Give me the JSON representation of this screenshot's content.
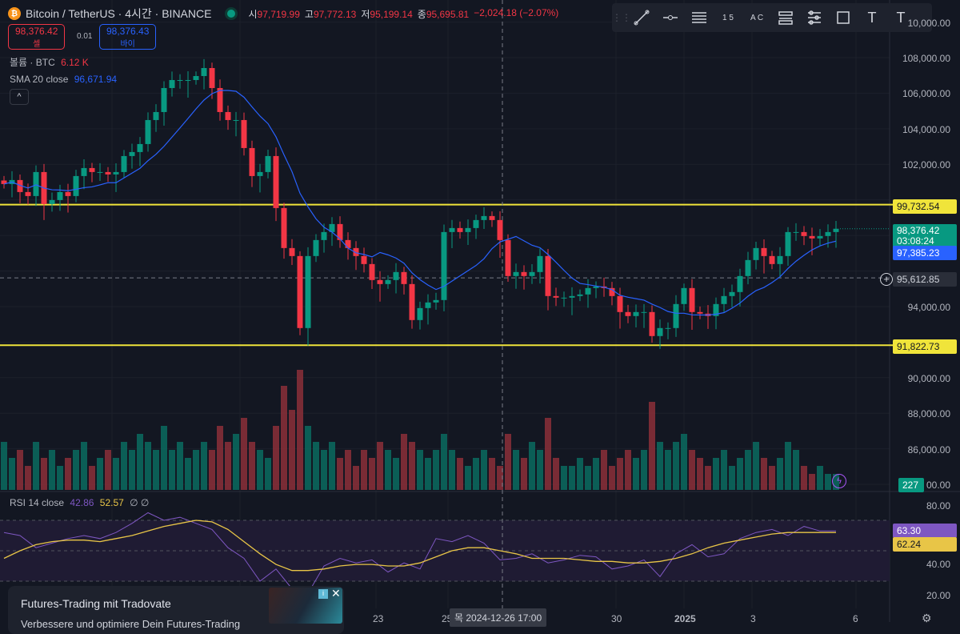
{
  "header": {
    "symbol": "Bitcoin / TetherUS · 4시간 · BINANCE",
    "open_label": "시",
    "open": "97,719.99",
    "high_label": "고",
    "high": "97,772.13",
    "low_label": "저",
    "low": "95,199.14",
    "close_label": "종",
    "close": "95,695.81",
    "change": "−2,024.18 (−2.07%)"
  },
  "trade": {
    "sell_price": "98,376.42",
    "sell_label": "셀",
    "spread": "0.01",
    "buy_price": "98,376.43",
    "buy_label": "바이"
  },
  "legend": {
    "volume_label": "볼륨 · BTC",
    "volume_value": "6.12 K",
    "sma_label": "SMA 20 close",
    "sma_value": "96,671.94",
    "collapse": "^"
  },
  "toolbar": {
    "icons": [
      "grip",
      "trend-line",
      "horizontal-ray",
      "parallel-lines",
      "fib-pattern",
      "abc-pattern",
      "lines",
      "multi-lines",
      "rectangle",
      "text",
      "text-note"
    ],
    "fib_glyph": "1 5",
    "abc_glyph": "A C",
    "text_glyph": "T",
    "note_glyph": "T"
  },
  "price_axis": [
    "10,000.00",
    "108,000.00",
    "106,000.00",
    "104,000.00",
    "102,000.00",
    "94,000.00",
    "90,000.00",
    "88,000.00",
    "86,000.00",
    "00.00"
  ],
  "price_labels": {
    "resistance": "99,732.54",
    "last": "98,376.42",
    "countdown": "03:08:24",
    "sma": "97,385.23",
    "crosshair": "95,612.85",
    "support": "91,822.73",
    "volume": "227"
  },
  "rsi": {
    "label": "RSI 14 close",
    "value": "42.86",
    "ma_value": "52.57",
    "extra": "∅ ∅",
    "axis": [
      "80.00",
      "40.00",
      "20.00"
    ],
    "tag_rsi": "63.30",
    "tag_ma": "62.24"
  },
  "time_axis": {
    "labels": [
      "23",
      "25",
      "30",
      "2025",
      "3",
      "6"
    ],
    "crosshair": "목 2024-12-26   17:00"
  },
  "ad": {
    "title": "Futures-Trading mit Tradovate",
    "subtitle": "Verbessere und optimiere Dein Futures-Trading",
    "close": "✕",
    "info": "i"
  },
  "colors": {
    "up": "#089981",
    "down": "#f23645",
    "sma": "#2962ff",
    "level": "#f0e43a",
    "rsi": "#7e57c2",
    "rsi_ma": "#e8c547"
  },
  "chart_data": {
    "type": "candlestick",
    "levels": [
      99732.54,
      91822.73
    ],
    "closes": [
      100890,
      101115,
      100440,
      100215,
      101565,
      99765,
      99990,
      100440,
      100215,
      101340,
      101790,
      101565,
      101565,
      101430,
      101565,
      102465,
      102690,
      103140,
      104490,
      104940,
      106290,
      106740,
      106740,
      106740,
      106965,
      107415,
      106290,
      104940,
      104490,
      104490,
      102915,
      101340,
      101565,
      102465,
      99540,
      97290,
      96840,
      92790,
      96840,
      97740,
      98190,
      98640,
      97740,
      97290,
      96840,
      96390,
      95490,
      95265,
      95490,
      95940,
      95265,
      93240,
      93915,
      94230,
      94365,
      98190,
      98415,
      98190,
      98415,
      98865,
      99090,
      98865,
      97740,
      95715,
      95940,
      95715,
      95940,
      96840,
      94590,
      94500,
      94500,
      94590,
      94680,
      95040,
      95130,
      95040,
      94590,
      93690,
      93465,
      93690,
      93690,
      92340,
      92790,
      92790,
      94140,
      95040,
      93690,
      93600,
      93465,
      94140,
      94590,
      94815,
      95715,
      96615,
      97290,
      96840,
      96390,
      96840,
      98190,
      98190,
      97965,
      97830,
      97965,
      98190,
      98376
    ],
    "volumes": [
      6,
      4,
      5,
      3,
      6,
      4,
      5,
      3,
      4,
      5,
      6,
      3,
      4,
      5,
      4,
      6,
      5,
      7,
      6,
      5,
      8,
      5,
      6,
      4,
      5,
      6,
      5,
      8,
      6,
      7,
      9,
      6,
      5,
      4,
      8,
      13,
      10,
      15,
      8,
      6,
      5,
      6,
      4,
      5,
      3,
      5,
      4,
      6,
      5,
      4,
      7,
      6,
      5,
      4,
      5,
      7,
      5,
      4,
      3,
      4,
      5,
      4,
      3,
      7,
      5,
      4,
      6,
      5,
      9,
      4,
      3,
      3,
      4,
      3,
      4,
      5,
      3,
      4,
      5,
      4,
      5,
      11,
      6,
      5,
      6,
      7,
      5,
      4,
      3,
      4,
      5,
      3,
      4,
      5,
      6,
      4,
      3,
      4,
      6,
      5,
      3,
      2,
      3,
      2,
      2
    ],
    "rsi": [
      62,
      60,
      52,
      55,
      58,
      60,
      58,
      62,
      68,
      75,
      70,
      72,
      68,
      64,
      52,
      45,
      30,
      38,
      25,
      22,
      40,
      45,
      42,
      44,
      36,
      42,
      38,
      58,
      56,
      60,
      55,
      44,
      45,
      48,
      42,
      44,
      47,
      46,
      38,
      40,
      44,
      33,
      48,
      54,
      46,
      48,
      58,
      62,
      64,
      60,
      66,
      63,
      63
    ],
    "rsi_ma": [
      45,
      50,
      54,
      56,
      57,
      57,
      56,
      58,
      60,
      63,
      66,
      68,
      70,
      69,
      64,
      56,
      48,
      41,
      37,
      37,
      38,
      40,
      41,
      41,
      40,
      40,
      42,
      46,
      50,
      52,
      52,
      50,
      48,
      45,
      45,
      45,
      44,
      43,
      43,
      42,
      42,
      43,
      45,
      48,
      52,
      55,
      57,
      59,
      61,
      62,
      62,
      62,
      62
    ]
  }
}
